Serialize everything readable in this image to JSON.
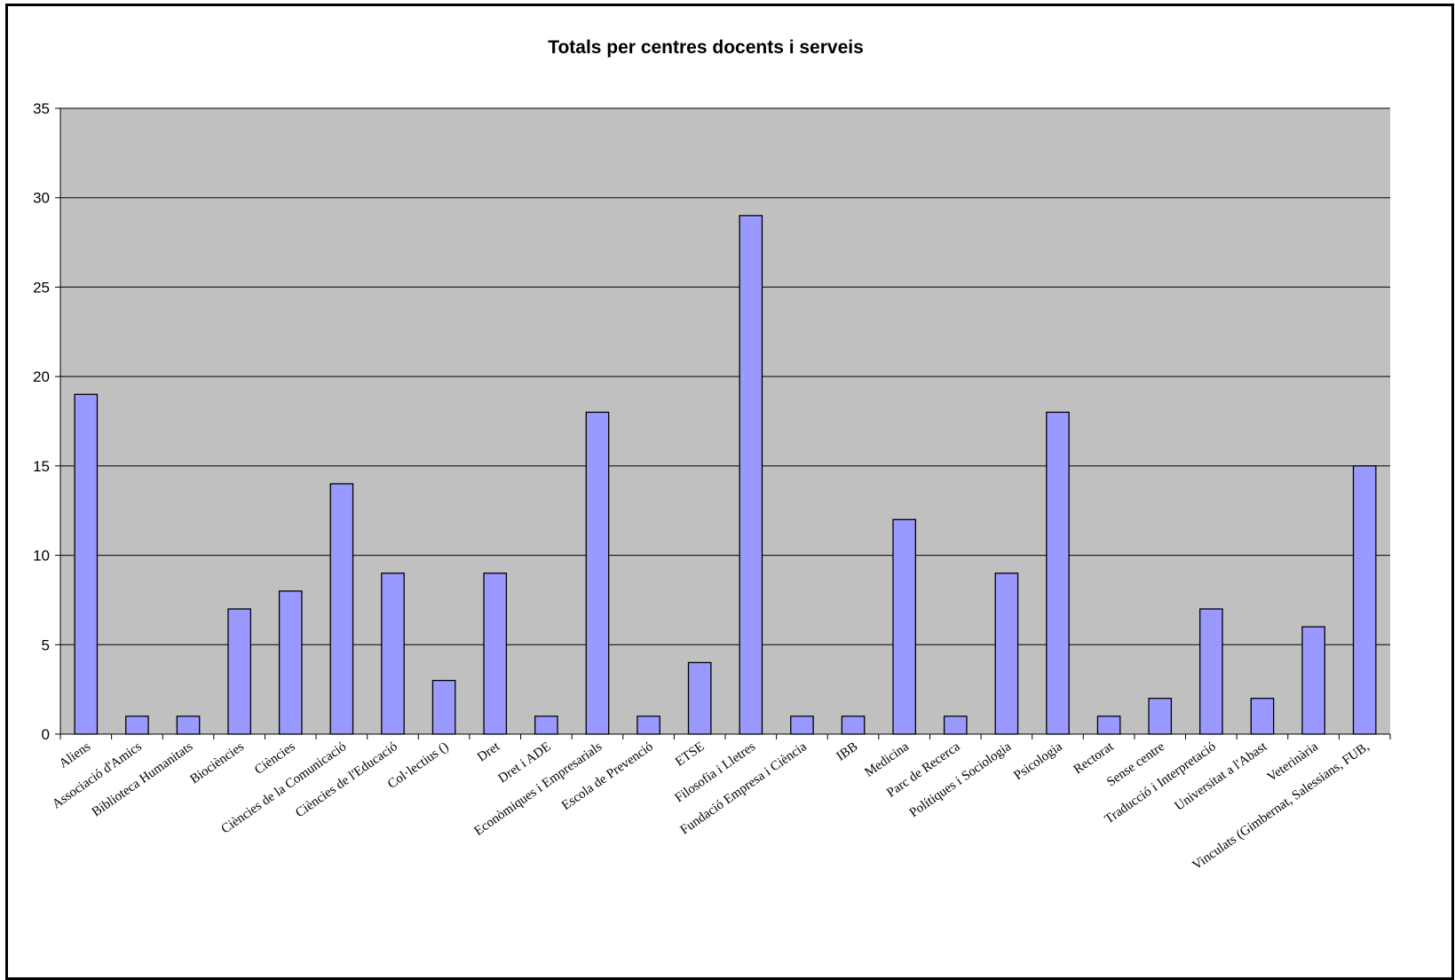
{
  "chart_data": {
    "type": "bar",
    "title": "Totals per centres docents i serveis",
    "xlabel": "",
    "ylabel": "",
    "ylim": [
      0,
      35
    ],
    "yticks": [
      0,
      5,
      10,
      15,
      20,
      25,
      30,
      35
    ],
    "grid": true,
    "legend": "none",
    "colors": {
      "bar_fill": "#9999ff",
      "bar_stroke": "#000000",
      "plot_background": "#c0c0c0",
      "gridline": "#000000"
    },
    "categories": [
      "Aliens",
      "Associació d'Amics",
      "Biblioteca Humanitats",
      "Biociències",
      "Ciències",
      "Ciències de la Comunicació",
      "Ciències de l'Educació",
      "Col·lectius ()",
      "Dret",
      "Dret i ADE",
      "Econòmiques i Empresarials",
      "Escola de Prevenció",
      "ETSE",
      "Filosofia i Lletres",
      "Fundació Empresa i Ciència",
      "IBB",
      "Medicina",
      "Parc de Recerca",
      "Polítiques i Sociologia",
      "Psicologia",
      "Rectorat",
      "Sense centre",
      "Traducció i Interpretació",
      "Universitat a l'Abast",
      "Veterinària",
      "Vinculats (Gimbernat, Salessians, FUB,"
    ],
    "values": [
      19,
      1,
      1,
      7,
      8,
      14,
      9,
      3,
      9,
      1,
      18,
      1,
      4,
      29,
      1,
      1,
      12,
      1,
      9,
      18,
      1,
      2,
      7,
      2,
      6,
      15
    ]
  }
}
